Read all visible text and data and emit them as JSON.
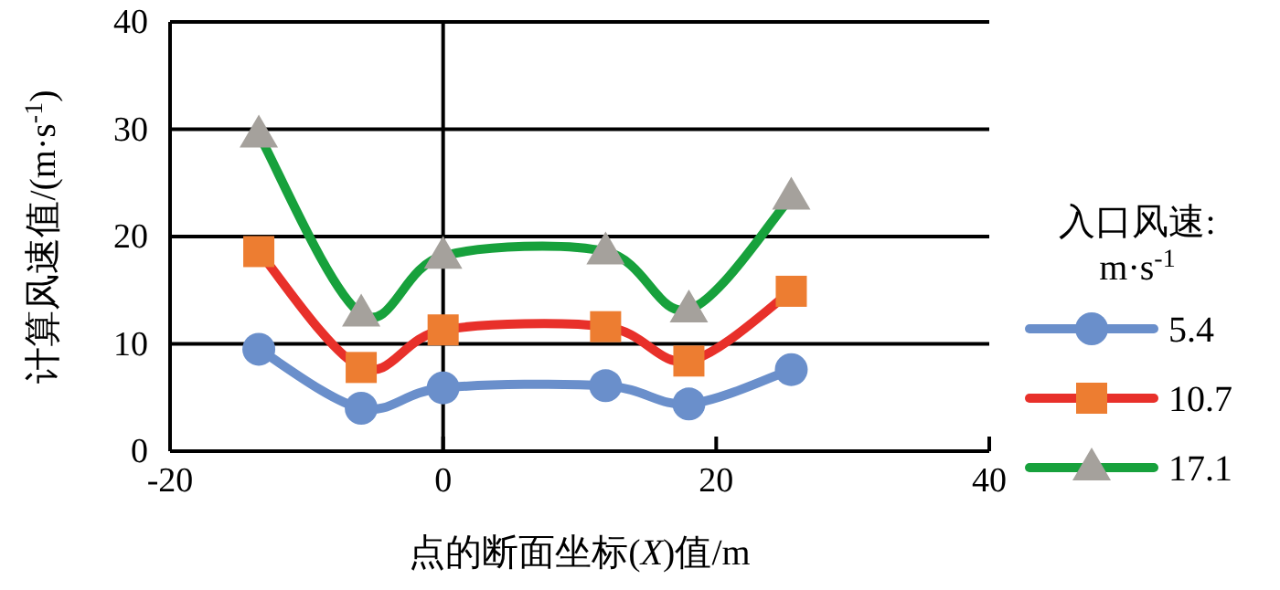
{
  "chart_data": {
    "type": "line",
    "xlabel": "点的断面坐标(*X*)值/m",
    "ylabel": "计算风速值/(m·s$^{-1}$)",
    "legend_title": "入口风速:\nm·s$^{-1}$",
    "x": [
      -13.5,
      -6.0,
      0,
      11.9,
      18.0,
      25.5
    ],
    "series": [
      {
        "name": "5.4",
        "color": "#6a8fcb",
        "marker": "circle",
        "values": [
          9.5,
          4.0,
          5.9,
          6.1,
          4.4,
          7.6
        ]
      },
      {
        "name": "10.7",
        "color": "#e8302a",
        "marker": "square",
        "values": [
          18.6,
          7.8,
          11.3,
          11.6,
          8.4,
          14.9
        ]
      },
      {
        "name": "17.1",
        "color": "#17a13c",
        "marker": "triangle",
        "values": [
          29.5,
          12.8,
          18.2,
          18.6,
          13.2,
          23.7
        ]
      }
    ],
    "xlim": [
      -20,
      40
    ],
    "xticks": [
      -20,
      0,
      20,
      40
    ],
    "ylim": [
      0,
      40
    ],
    "yticks": [
      0,
      10,
      20,
      30,
      40
    ],
    "grid": "y",
    "legend": "right",
    "ref_lines": [
      {
        "axis": "x",
        "value": 0
      }
    ]
  }
}
